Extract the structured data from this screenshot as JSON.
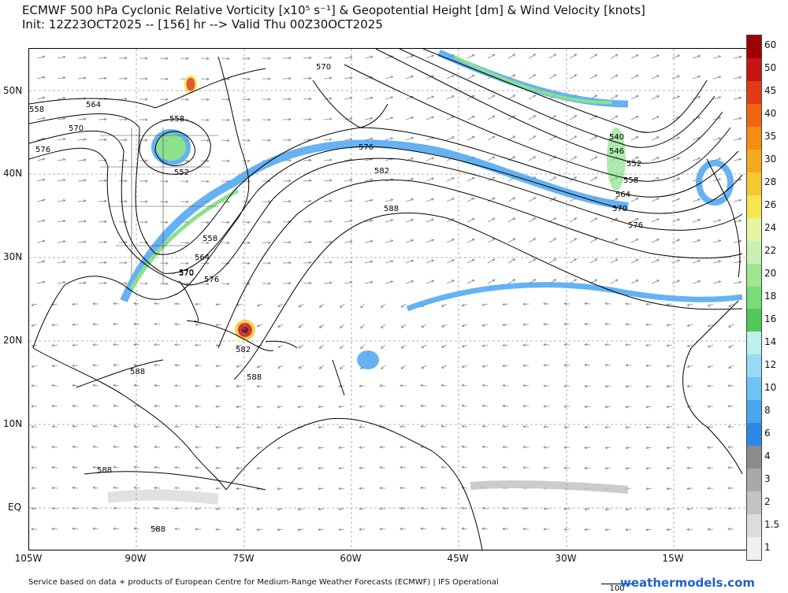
{
  "title": {
    "line1": "ECMWF 500 hPa Cyclonic Relative Vorticity [x10⁵ s⁻¹] & Geopotential Height [dm] & Wind Velocity [knots]",
    "line2": "Init: 12Z23OCT2025 -- [156] hr --> Valid Thu 00Z30OCT2025"
  },
  "map": {
    "lat_labels": [
      "50N",
      "40N",
      "30N",
      "20N",
      "10N",
      "EQ"
    ],
    "lon_labels": [
      "105W",
      "90W",
      "75W",
      "60W",
      "45W",
      "30W",
      "15W"
    ],
    "height_contour_labels": [
      "570",
      "564",
      "558",
      "558",
      "552",
      "570",
      "576",
      "576",
      "582",
      "588",
      "570",
      "540",
      "546",
      "552",
      "558",
      "564",
      "570",
      "576",
      "558",
      "564",
      "570",
      "576",
      "582",
      "588",
      "588",
      "588",
      "588"
    ],
    "colors": {
      "land": "#ffffff",
      "coastline": "#000000",
      "contour": "#000000",
      "wind_arrow": "#888888",
      "grid": "#9a9a9a"
    }
  },
  "colorbar": {
    "labels": [
      "60",
      "50",
      "45",
      "40",
      "35",
      "30",
      "28",
      "26",
      "24",
      "22",
      "20",
      "18",
      "16",
      "14",
      "12",
      "10",
      "8",
      "6",
      "4",
      "3",
      "2",
      "1.5",
      "1"
    ],
    "colors": [
      "#a00000",
      "#c81414",
      "#e13c14",
      "#f06414",
      "#f58c14",
      "#f5aa1e",
      "#f5c832",
      "#f5e650",
      "#e6f5a0",
      "#c8f0b4",
      "#a0e68c",
      "#78dc78",
      "#50c85a",
      "#bef0f0",
      "#96dcf5",
      "#6ec3f5",
      "#4ba5f0",
      "#2d87e6",
      "#8c8c8c",
      "#a8a8a8",
      "#c3c3c3",
      "#dcdcdc",
      "#f0f0f0"
    ]
  },
  "footer": {
    "credit": "Service based on data + products of European Centre for Medium-Range Weather Forecasts (ECMWF) | IFS Operational",
    "brand": "weathermodels.com",
    "scale_label": "100"
  }
}
